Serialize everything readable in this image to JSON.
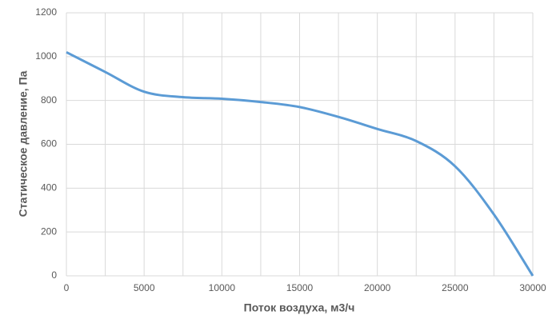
{
  "chart_data": {
    "type": "line",
    "x_label": "Поток воздуха, м3/ч",
    "y_label": "Статическое давление, Па",
    "x": [
      0,
      2500,
      5000,
      7500,
      10000,
      12500,
      15000,
      17500,
      20000,
      22500,
      25000,
      27500,
      30000
    ],
    "series": [
      {
        "name": null,
        "color": "#5b9bd5",
        "values": [
          1020,
          930,
          840,
          815,
          808,
          793,
          770,
          725,
          670,
          615,
          500,
          280,
          0
        ]
      }
    ],
    "xlim": [
      0,
      30000
    ],
    "xticks": [
      0,
      5000,
      10000,
      15000,
      20000,
      25000,
      30000
    ],
    "xminorticks": [
      2500,
      7500,
      12500,
      17500,
      22500,
      27500
    ],
    "ylim": [
      0,
      1200
    ],
    "yticks": [
      0,
      200,
      400,
      600,
      800,
      1000,
      1200
    ],
    "grid": true
  }
}
